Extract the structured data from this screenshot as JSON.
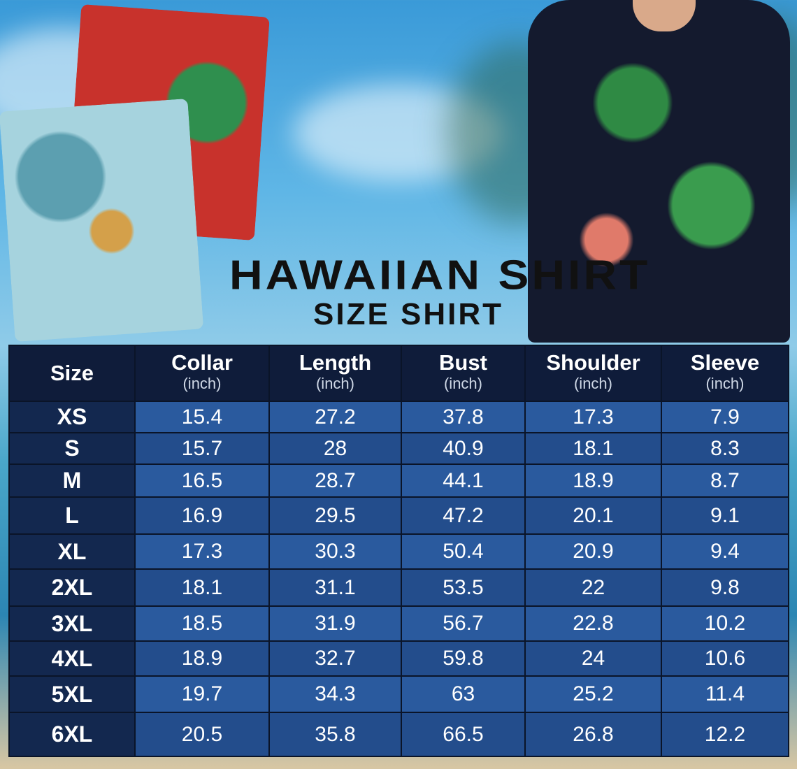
{
  "header": {
    "title": "HAWAIIAN SHIRT",
    "subtitle": "SIZE SHIRT"
  },
  "table": {
    "columns": [
      {
        "label": "Size",
        "unit": ""
      },
      {
        "label": "Collar",
        "unit": "(inch)"
      },
      {
        "label": "Length",
        "unit": "(inch)"
      },
      {
        "label": "Bust",
        "unit": "(inch)"
      },
      {
        "label": "Shoulder",
        "unit": "(inch)"
      },
      {
        "label": "Sleeve",
        "unit": "(inch)"
      }
    ],
    "rows": [
      [
        "XS",
        "15.4",
        "27.2",
        "37.8",
        "17.3",
        "7.9"
      ],
      [
        "S",
        "15.7",
        "28",
        "40.9",
        "18.1",
        "8.3"
      ],
      [
        "M",
        "16.5",
        "28.7",
        "44.1",
        "18.9",
        "8.7"
      ],
      [
        "L",
        "16.9",
        "29.5",
        "47.2",
        "20.1",
        "9.1"
      ],
      [
        "XL",
        "17.3",
        "30.3",
        "50.4",
        "20.9",
        "9.4"
      ],
      [
        "2XL",
        "18.1",
        "31.1",
        "53.5",
        "22",
        "9.8"
      ],
      [
        "3XL",
        "18.5",
        "31.9",
        "56.7",
        "22.8",
        "10.2"
      ],
      [
        "4XL",
        "18.9",
        "32.7",
        "59.8",
        "24",
        "10.6"
      ],
      [
        "5XL",
        "19.7",
        "34.3",
        "63",
        "25.2",
        "11.4"
      ],
      [
        "6XL",
        "20.5",
        "35.8",
        "66.5",
        "26.8",
        "12.2"
      ]
    ]
  },
  "colors": {
    "header_bg": "#0f1c3a",
    "row_bg": "#2a5a9e",
    "size_bg": "#13284f"
  }
}
